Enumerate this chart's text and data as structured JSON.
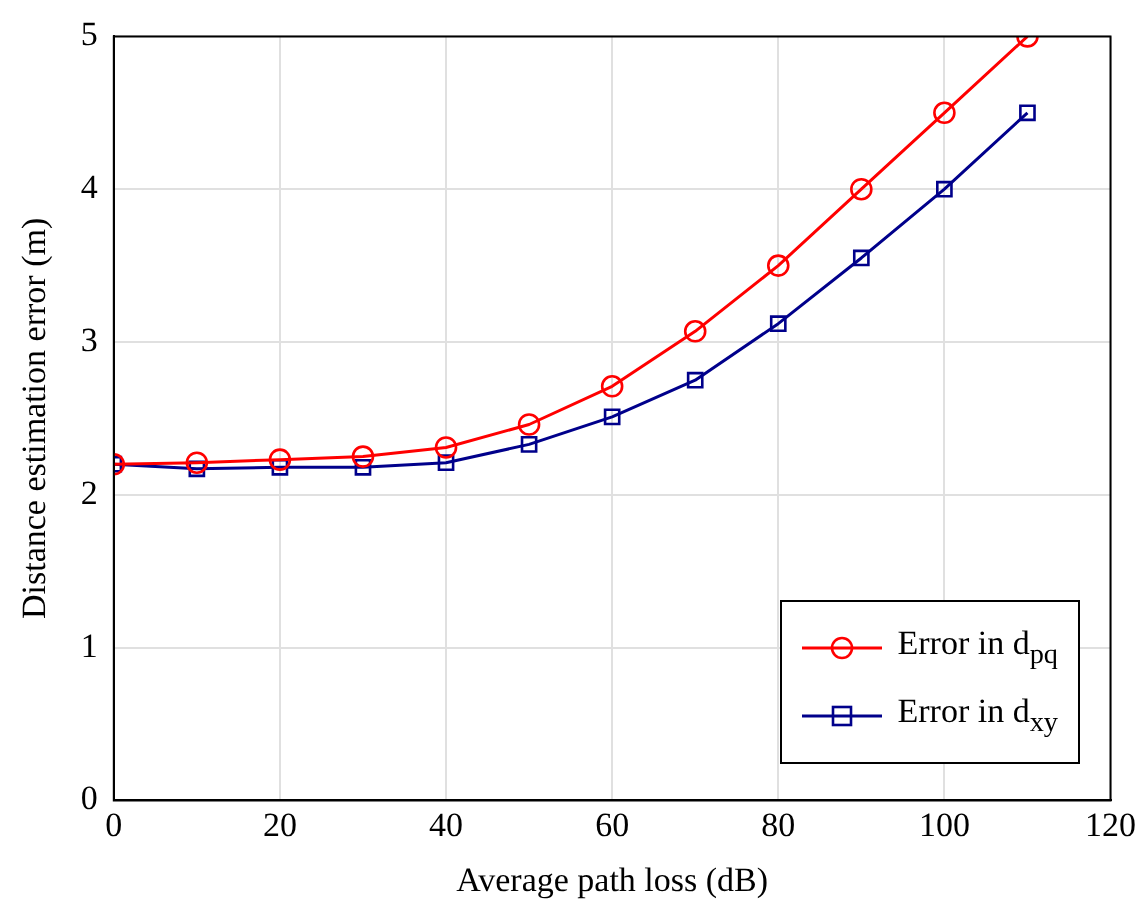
{
  "chart_data": {
    "type": "line",
    "xlabel": "Average path loss (dB)",
    "ylabel": "Distance estimation error (m)",
    "x": [
      0,
      10,
      20,
      30,
      40,
      50,
      60,
      70,
      80,
      90,
      100,
      110
    ],
    "series": [
      {
        "name": "Error in d$_{pq}$",
        "color": "#ff0000",
        "marker": "circle",
        "values": [
          2.2,
          2.21,
          2.23,
          2.25,
          2.31,
          2.46,
          2.71,
          3.07,
          3.5,
          4.0,
          4.5,
          5.0
        ]
      },
      {
        "name": "Error in d$_{xy}$",
        "color": "#00008b",
        "marker": "square",
        "values": [
          2.2,
          2.17,
          2.18,
          2.18,
          2.21,
          2.33,
          2.51,
          2.75,
          3.12,
          3.55,
          4.0,
          4.5
        ]
      }
    ],
    "xlim": [
      0,
      120
    ],
    "xticks": [
      0,
      20,
      40,
      60,
      80,
      100,
      120
    ],
    "ylim": [
      0,
      5
    ],
    "yticks": [
      0,
      1,
      2,
      3,
      4,
      5
    ],
    "grid": true,
    "legend": "bottom right",
    "line_style": "solid"
  }
}
